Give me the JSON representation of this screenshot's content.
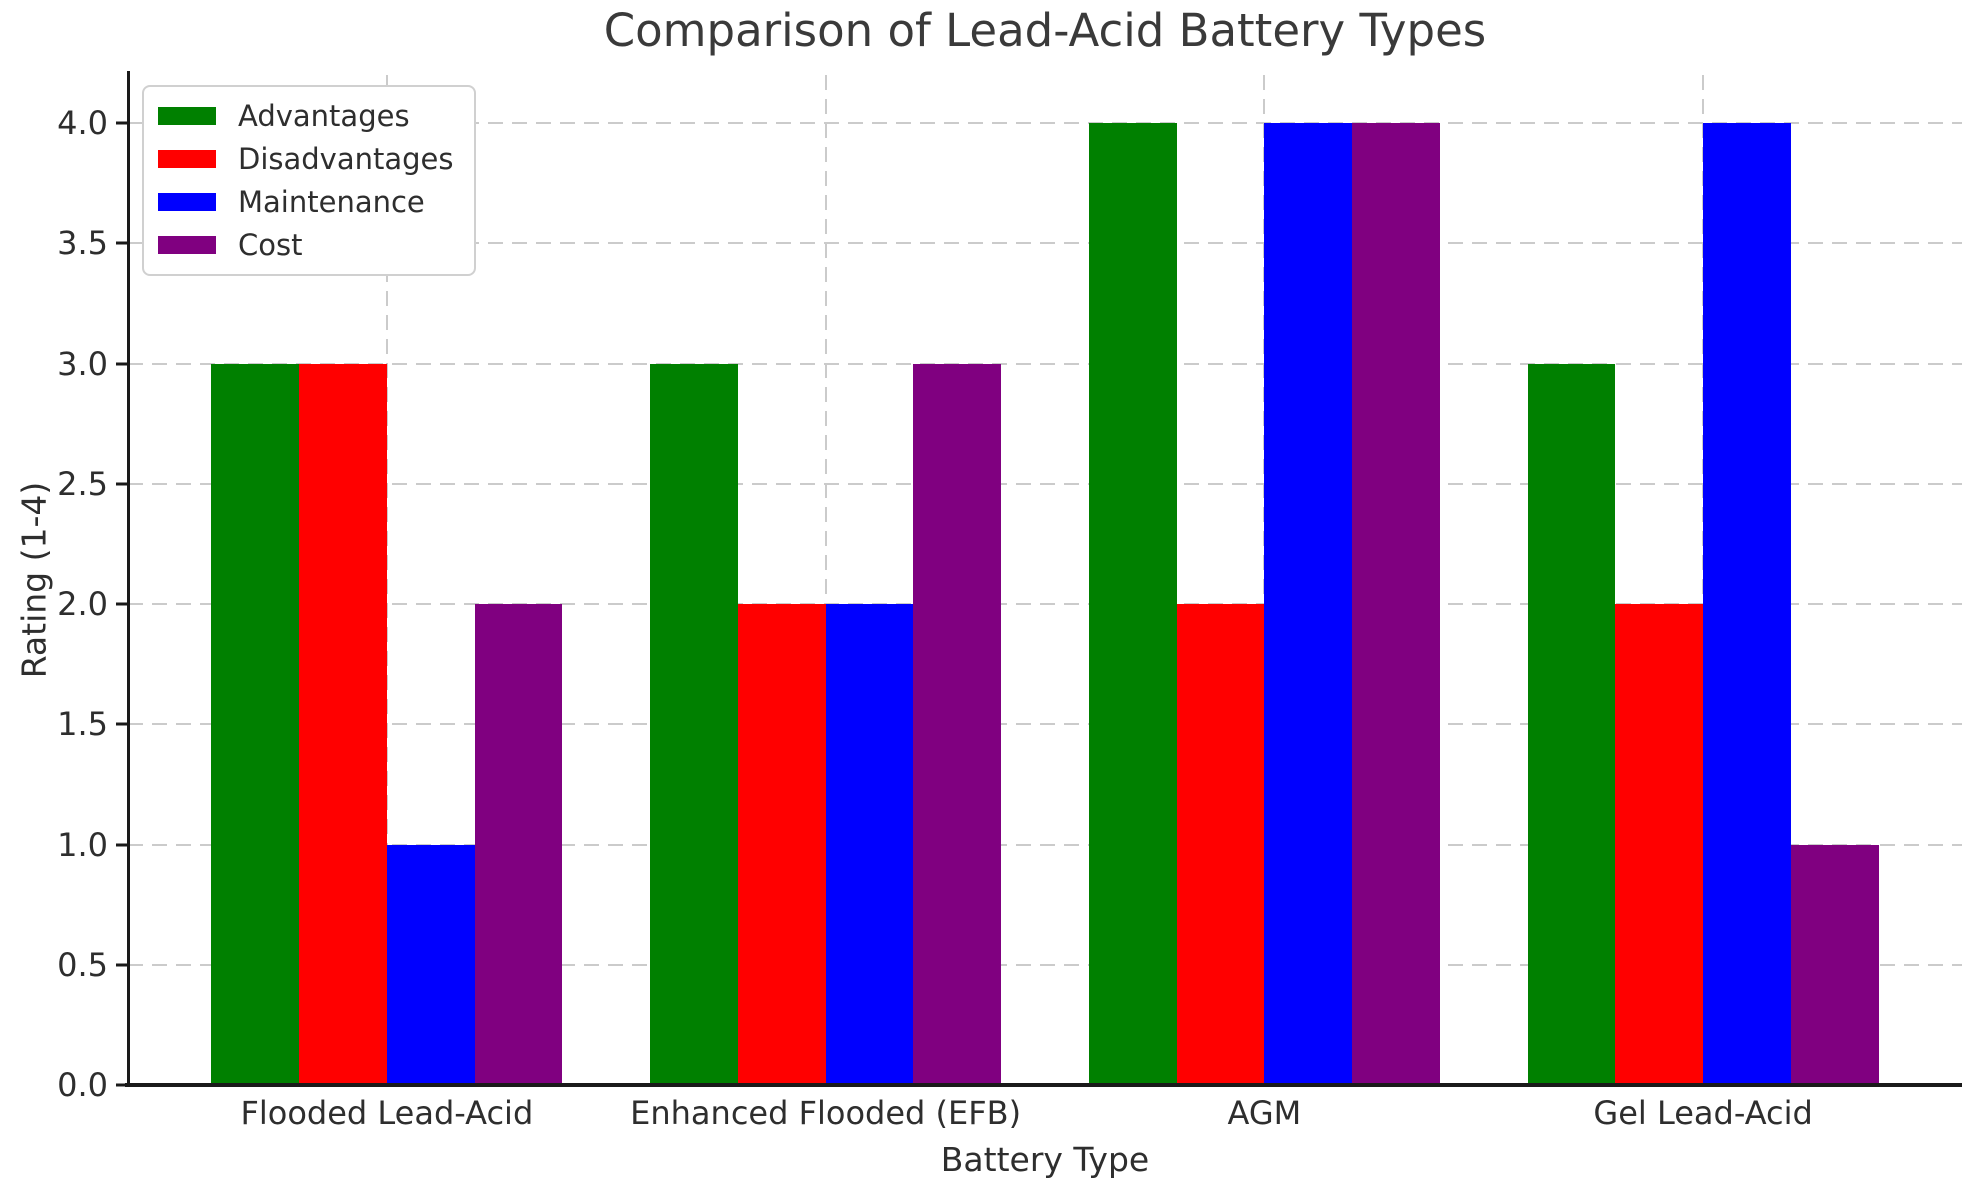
{
  "chart_data": {
    "type": "bar",
    "title": "Comparison of Lead-Acid Battery Types",
    "xlabel": "Battery Type",
    "ylabel": "Rating (1-4)",
    "categories": [
      "Flooded Lead-Acid",
      "Enhanced Flooded (EFB)",
      "AGM",
      "Gel Lead-Acid"
    ],
    "series": [
      {
        "name": "Advantages",
        "color": "#008000",
        "values": [
          3,
          3,
          4,
          3
        ]
      },
      {
        "name": "Disadvantages",
        "color": "#ff0000",
        "values": [
          3,
          2,
          2,
          2
        ]
      },
      {
        "name": "Maintenance",
        "color": "#0000ff",
        "values": [
          1,
          2,
          4,
          4
        ]
      },
      {
        "name": "Cost",
        "color": "#800080",
        "values": [
          2,
          3,
          4,
          1
        ]
      }
    ],
    "yticks": [
      "0.0",
      "0.5",
      "1.0",
      "1.5",
      "2.0",
      "2.5",
      "3.0",
      "3.5",
      "4.0"
    ],
    "ylim": [
      0,
      4.2
    ],
    "xlim": [
      -0.59,
      3.59
    ],
    "bar_width": 0.2,
    "grid": true,
    "legend_position": "upper left"
  }
}
